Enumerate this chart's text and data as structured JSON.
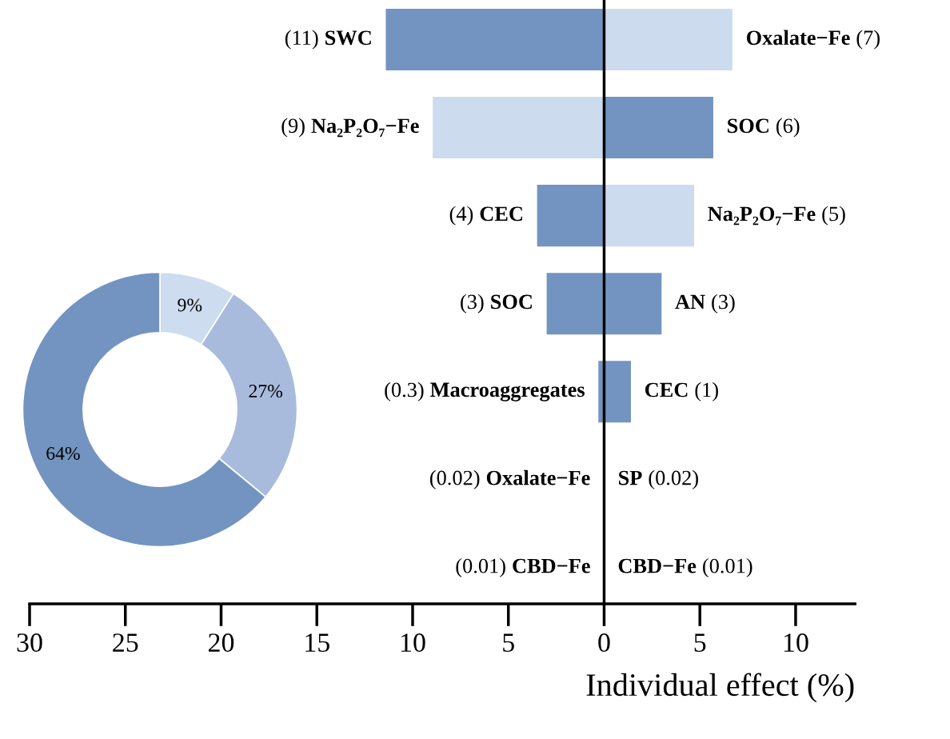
{
  "chart_data": [
    {
      "type": "bar",
      "orientation": "horizontal",
      "stacked": true,
      "categories": [
        null,
        null,
        null,
        null,
        null,
        null,
        null
      ],
      "series": [
        {
          "values": [
            -11.4,
            -8.95,
            -3.5,
            -3.0,
            -0.3,
            -0.02,
            -0.01
          ],
          "colors": [
            "#7394c0",
            "#ccdcee",
            "#7394c0",
            "#7394c0",
            "#7394c0",
            "#ccdcee",
            "#ccdcee"
          ],
          "value_labels": [
            "(11) SWC",
            "(9) Na₂P₂O₇−Fe",
            "(4) CEC",
            "(3) SOC",
            "(0.3) Macroaggregates",
            "(0.02) Oxalate−Fe",
            "(0.01) CBD−Fe"
          ]
        },
        {
          "values": [
            6.7,
            5.7,
            4.7,
            3.0,
            1.4,
            0.02,
            0.01
          ],
          "colors": [
            "#ccdcee",
            "#7394c0",
            "#ccdcee",
            "#7394c0",
            "#7394c0",
            "#7394c0",
            "#ccdcee"
          ],
          "value_labels": [
            "Oxalate−Fe (7)",
            "SOC (6)",
            "Na₂P₂O₇−Fe (5)",
            "AN (3)",
            "CEC (1)",
            "SP (0.02)",
            "CBD−Fe (0.01)"
          ]
        }
      ],
      "xlim": [
        -30,
        13.1
      ],
      "xticks": [
        {
          "value": -30,
          "label": "30"
        },
        {
          "value": -25,
          "label": "25"
        },
        {
          "value": -20,
          "label": "20"
        },
        {
          "value": -15,
          "label": "15"
        },
        {
          "value": -10,
          "label": "10"
        },
        {
          "value": -5,
          "label": "5"
        },
        0,
        5,
        10
      ],
      "xlabel": "Individual effect (%)",
      "ref_lines": [
        {
          "axis": "x",
          "value": 0,
          "color": "#000000"
        }
      ],
      "grid": false
    },
    {
      "type": "donut",
      "categories": [
        null,
        null,
        null
      ],
      "values": [
        9,
        27,
        64
      ],
      "colors": [
        "#cddcee",
        "#a8bbdc",
        "#7394c0"
      ],
      "value_labels": [
        "9%",
        "27%",
        "64%"
      ]
    }
  ]
}
